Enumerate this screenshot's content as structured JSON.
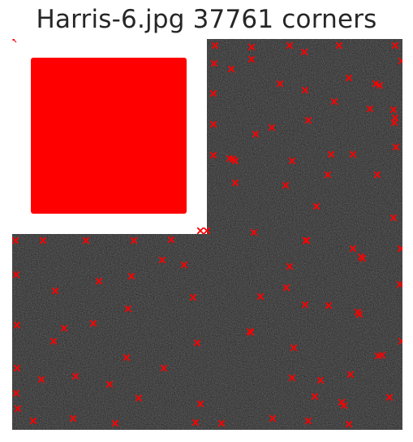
{
  "figure": {
    "title": "Harris-6.jpg 37761 corners",
    "image_name": "Harris-6.jpg",
    "corner_count": 37761,
    "colors": {
      "background": "#ffffff",
      "noise_dark": "#2b2b2b",
      "noise_light": "#6a6a6a",
      "blank_region": "#ffffff",
      "corner_marker": "#ff0000",
      "title_text": "#262626"
    },
    "marker_style": "x",
    "noted_region": "upper-left square filled solid red by dense corner markers"
  }
}
